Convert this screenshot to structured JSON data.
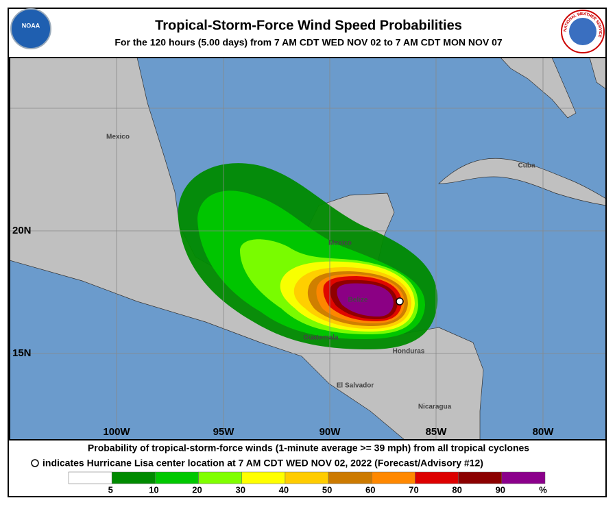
{
  "header": {
    "title": "Tropical-Storm-Force Wind Speed Probabilities",
    "subtitle": "For the 120 hours (5.00 days) from 7 AM CDT WED NOV 02 to 7 AM CDT MON NOV 07",
    "noaa_logo": "NOAA",
    "nws_logo": "NATIONAL WEATHER SERVICE"
  },
  "map": {
    "longitude_labels": [
      "100W",
      "95W",
      "90W",
      "85W",
      "80W"
    ],
    "latitude_labels": [
      "20N",
      "15N"
    ],
    "place_labels": [
      "Mexico",
      "Mexico",
      "Cuba",
      "Belize",
      "Guatemala",
      "Honduras",
      "El Salvador",
      "Nicaragua"
    ]
  },
  "footer": {
    "line1": "Probability of tropical-storm-force winds (1-minute average >= 39 mph) from all tropical cyclones",
    "line2": "indicates Hurricane Lisa center location at 7 AM CDT WED NOV 02, 2022 (Forecast/Advisory #12)"
  },
  "legend": {
    "colors": [
      "#ffffff",
      "#008a00",
      "#00c800",
      "#80ff00",
      "#ffff00",
      "#ffcc00",
      "#cc7a00",
      "#ff8800",
      "#dd0000",
      "#8b0000",
      "#8b008b"
    ],
    "labels": [
      "5",
      "10",
      "20",
      "30",
      "40",
      "50",
      "60",
      "70",
      "80",
      "90",
      "%"
    ]
  }
}
